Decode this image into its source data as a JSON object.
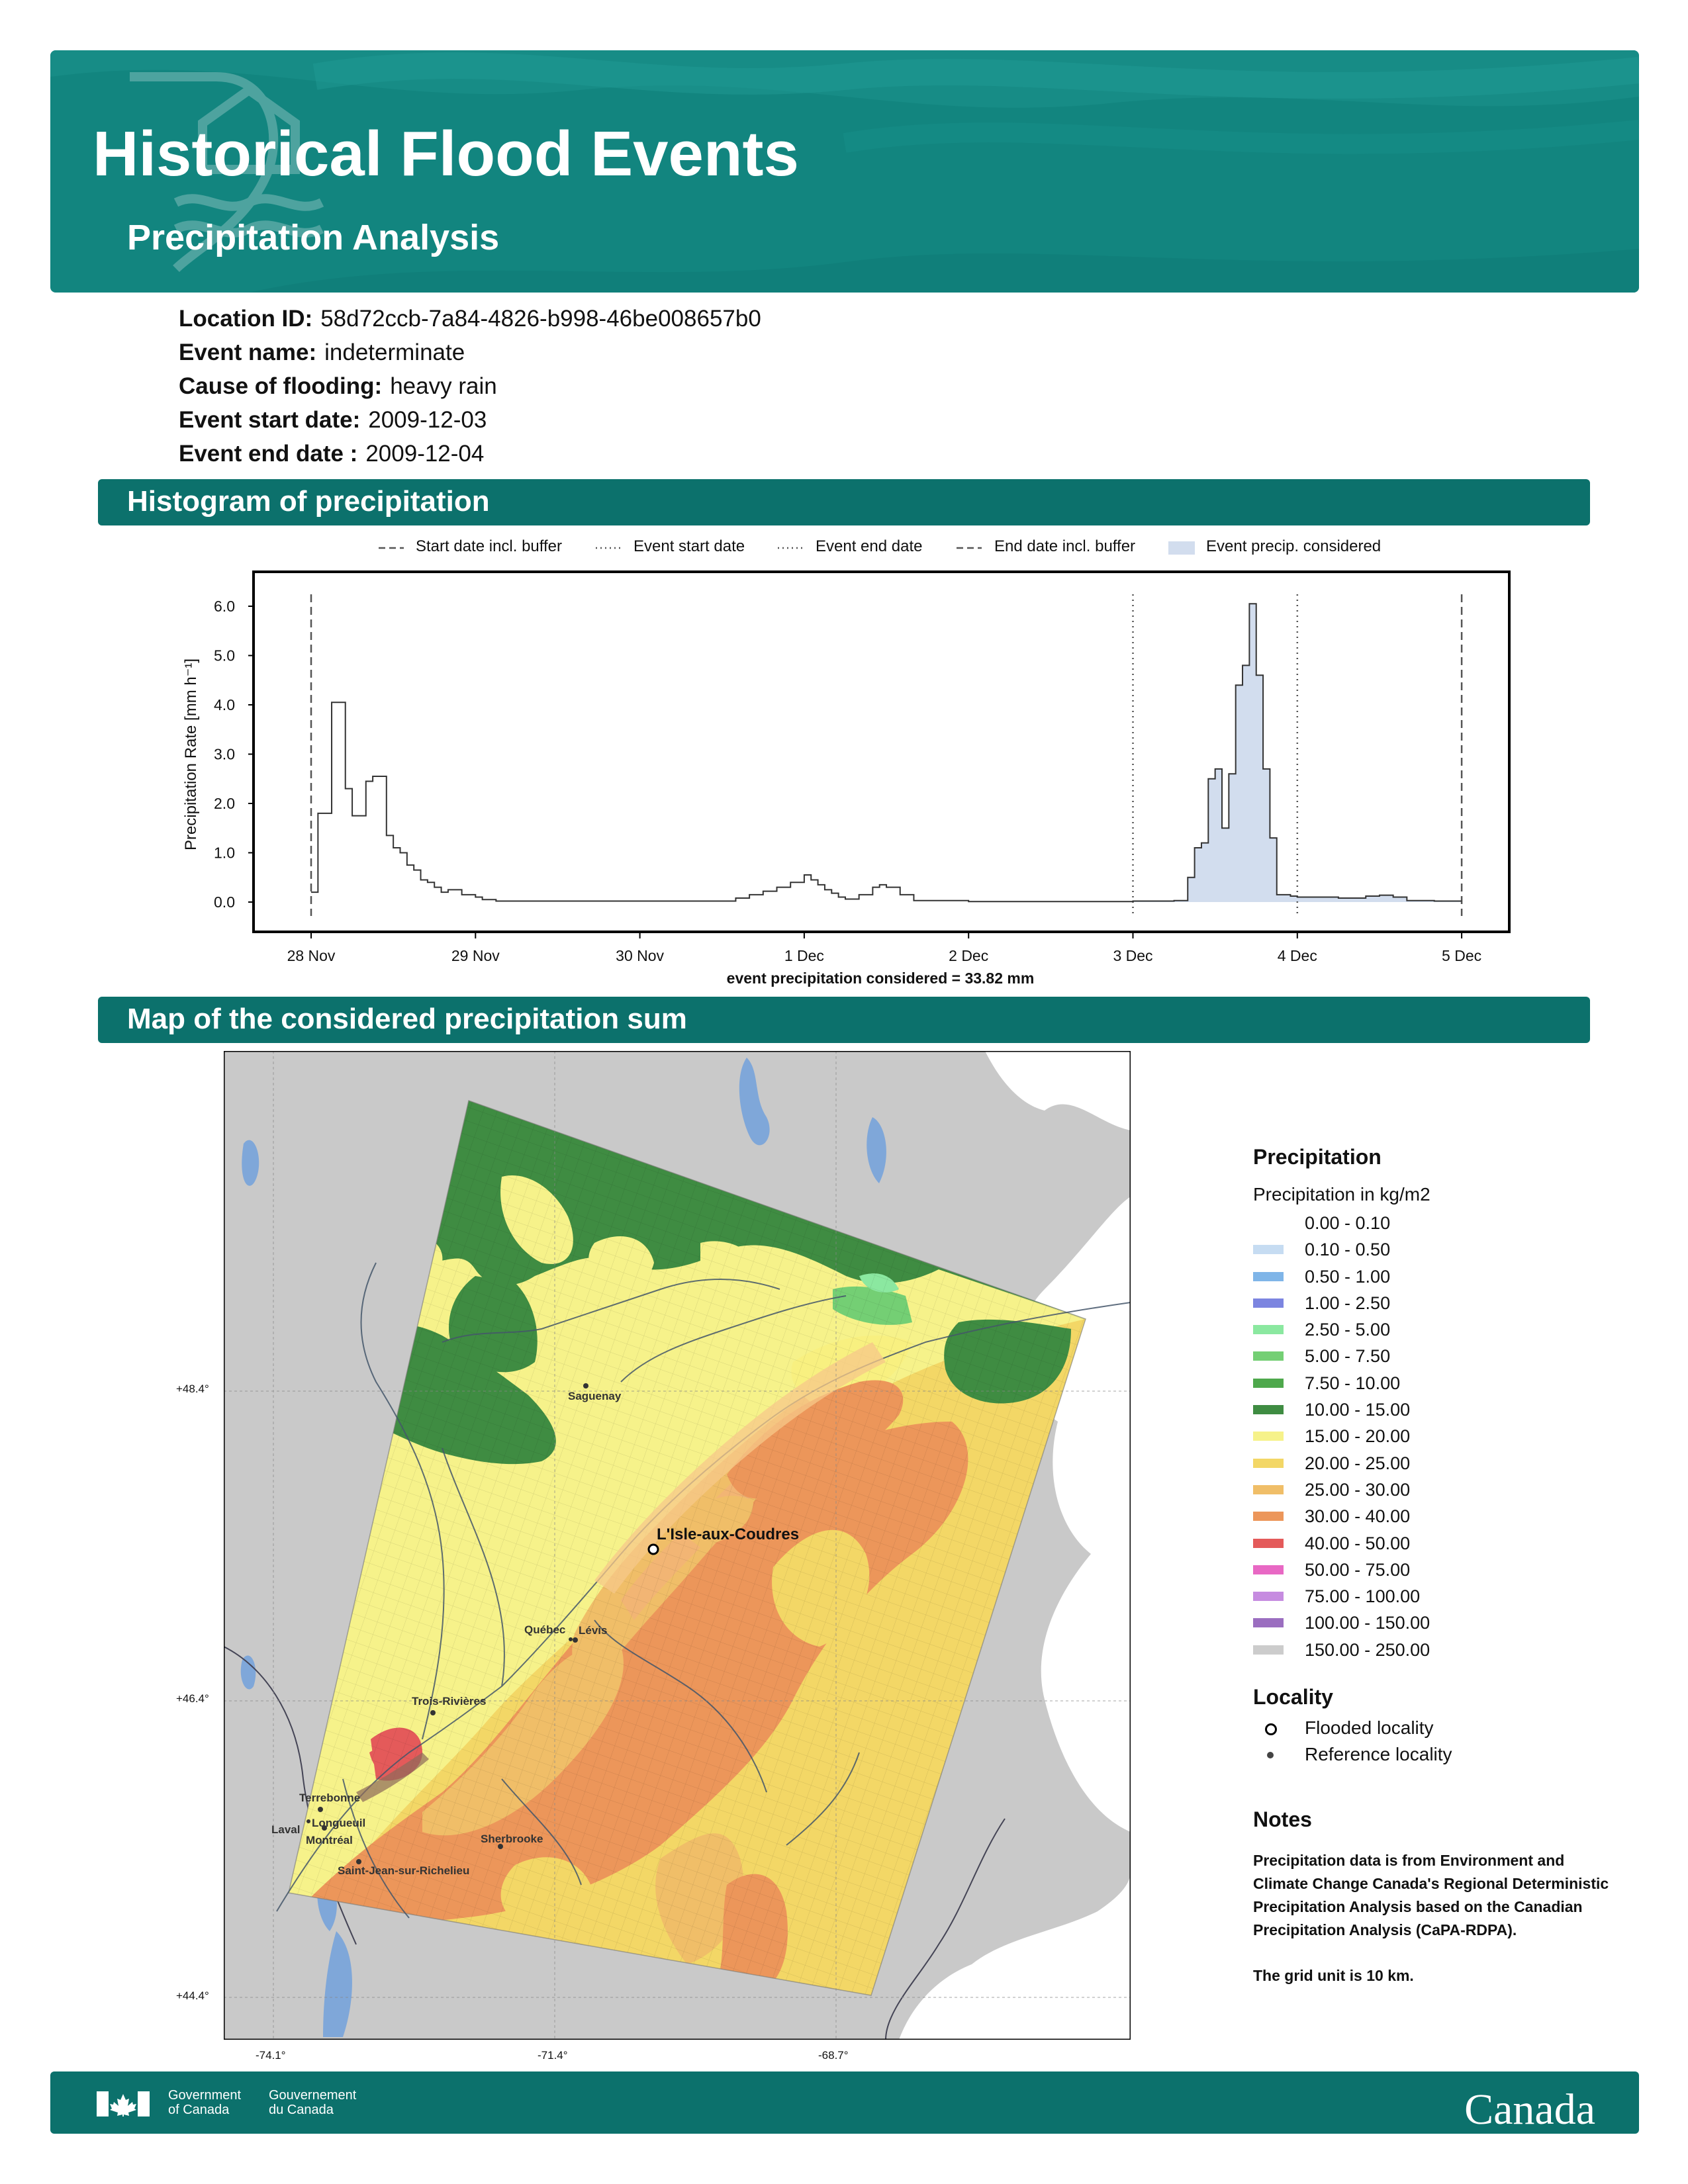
{
  "header": {
    "title": "Historical Flood Events",
    "subtitle": "Precipitation Analysis",
    "bg_color": "#12857f",
    "logo_icon": "flood-house-icon"
  },
  "event": {
    "location_id_label": "Location ID:",
    "location_id": "58d72ccb-7a84-4826-b998-46be008657b0",
    "event_name_label": "Event name:",
    "event_name": "indeterminate",
    "cause_label": "Cause of flooding:",
    "cause": "heavy rain",
    "start_label": "Event start date:",
    "start_date": "2009-12-03",
    "end_label": "Event end date :",
    "end_date": "2009-12-04"
  },
  "sections": {
    "histogram": "Histogram of precipitation",
    "map": "Map of the considered precipitation sum"
  },
  "chart_data": {
    "type": "area",
    "xlabel": "event precipitation considered = 33.82 mm",
    "ylabel": "Precipitation Rate [mm h⁻¹]",
    "ylim": [
      0,
      6.5
    ],
    "xlim_days": [
      27.8,
      35.1
    ],
    "x_ticks": [
      "28 Nov",
      "29 Nov",
      "30 Nov",
      "1 Dec",
      "2 Dec",
      "3 Dec",
      "4 Dec",
      "5 Dec"
    ],
    "y_ticks": [
      "0.0",
      "1.0",
      "2.0",
      "3.0",
      "4.0",
      "5.0",
      "6.0"
    ],
    "legend": [
      "Start date incl. buffer",
      "Event start date",
      "Event end date",
      "End date incl. buffer",
      "Event precip. considered"
    ],
    "legend_position": "top",
    "reference_lines": [
      {
        "name": "Start date incl. buffer",
        "date": "2009-11-28",
        "style": "dashed"
      },
      {
        "name": "Event start date",
        "date": "2009-12-03",
        "style": "dotted"
      },
      {
        "name": "Event end date",
        "date": "2009-12-04",
        "style": "dotted"
      },
      {
        "name": "End date incl. buffer",
        "date": "2009-12-05",
        "style": "dashed"
      }
    ],
    "series": [
      {
        "name": "Precipitation rate",
        "points": [
          [
            "2009-11-28 00:00",
            0.2
          ],
          [
            "2009-11-28 01:00",
            1.8
          ],
          [
            "2009-11-28 02:00",
            1.8
          ],
          [
            "2009-11-28 03:00",
            4.05
          ],
          [
            "2009-11-28 04:00",
            4.05
          ],
          [
            "2009-11-28 05:00",
            2.3
          ],
          [
            "2009-11-28 06:00",
            1.75
          ],
          [
            "2009-11-28 07:00",
            1.75
          ],
          [
            "2009-11-28 08:00",
            2.45
          ],
          [
            "2009-11-28 09:00",
            2.55
          ],
          [
            "2009-11-28 10:00",
            2.55
          ],
          [
            "2009-11-28 11:00",
            1.35
          ],
          [
            "2009-11-28 12:00",
            1.1
          ],
          [
            "2009-11-28 13:00",
            1.0
          ],
          [
            "2009-11-28 14:00",
            0.75
          ],
          [
            "2009-11-28 15:00",
            0.65
          ],
          [
            "2009-11-28 16:00",
            0.45
          ],
          [
            "2009-11-28 17:00",
            0.4
          ],
          [
            "2009-11-28 18:00",
            0.3
          ],
          [
            "2009-11-28 19:00",
            0.2
          ],
          [
            "2009-11-28 20:00",
            0.25
          ],
          [
            "2009-11-28 21:00",
            0.25
          ],
          [
            "2009-11-28 22:00",
            0.15
          ],
          [
            "2009-11-28 23:00",
            0.15
          ],
          [
            "2009-11-29 00:00",
            0.1
          ],
          [
            "2009-11-29 01:00",
            0.05
          ],
          [
            "2009-11-29 03:00",
            0.02
          ],
          [
            "2009-11-30 12:00",
            0.02
          ],
          [
            "2009-11-30 14:00",
            0.08
          ],
          [
            "2009-11-30 16:00",
            0.15
          ],
          [
            "2009-11-30 18:00",
            0.22
          ],
          [
            "2009-11-30 20:00",
            0.3
          ],
          [
            "2009-11-30 22:00",
            0.4
          ],
          [
            "2009-12-01 00:00",
            0.55
          ],
          [
            "2009-12-01 01:00",
            0.45
          ],
          [
            "2009-12-01 02:00",
            0.35
          ],
          [
            "2009-12-01 03:00",
            0.25
          ],
          [
            "2009-12-01 04:00",
            0.18
          ],
          [
            "2009-12-01 05:00",
            0.1
          ],
          [
            "2009-12-01 06:00",
            0.06
          ],
          [
            "2009-12-01 08:00",
            0.15
          ],
          [
            "2009-12-01 10:00",
            0.3
          ],
          [
            "2009-12-01 11:00",
            0.35
          ],
          [
            "2009-12-01 12:00",
            0.3
          ],
          [
            "2009-12-01 14:00",
            0.15
          ],
          [
            "2009-12-01 16:00",
            0.03
          ],
          [
            "2009-12-02 00:00",
            0.01
          ],
          [
            "2009-12-03 00:00",
            0.02
          ],
          [
            "2009-12-03 06:00",
            0.03
          ],
          [
            "2009-12-03 08:00",
            0.5
          ],
          [
            "2009-12-03 09:00",
            1.1
          ],
          [
            "2009-12-03 10:00",
            1.2
          ],
          [
            "2009-12-03 11:00",
            2.5
          ],
          [
            "2009-12-03 12:00",
            2.7
          ],
          [
            "2009-12-03 13:00",
            1.5
          ],
          [
            "2009-12-03 14:00",
            2.6
          ],
          [
            "2009-12-03 15:00",
            4.4
          ],
          [
            "2009-12-03 16:00",
            4.8
          ],
          [
            "2009-12-03 17:00",
            6.05
          ],
          [
            "2009-12-03 18:00",
            4.6
          ],
          [
            "2009-12-03 19:00",
            2.7
          ],
          [
            "2009-12-03 20:00",
            1.3
          ],
          [
            "2009-12-03 21:00",
            0.15
          ],
          [
            "2009-12-03 23:00",
            0.12
          ],
          [
            "2009-12-04 00:00",
            0.1
          ],
          [
            "2009-12-04 06:00",
            0.08
          ],
          [
            "2009-12-04 10:00",
            0.12
          ],
          [
            "2009-12-04 12:00",
            0.14
          ],
          [
            "2009-12-04 14:00",
            0.1
          ],
          [
            "2009-12-04 16:00",
            0.03
          ],
          [
            "2009-12-04 20:00",
            0.02
          ],
          [
            "2009-12-05 00:00",
            0.02
          ]
        ]
      }
    ],
    "shaded_range": [
      "2009-12-03",
      "2009-12-05"
    ],
    "colors": {
      "line": "#333333",
      "fill": "#d2ddee"
    }
  },
  "map": {
    "places": [
      {
        "name": "Saguenay",
        "type": "reference"
      },
      {
        "name": "L'Isle-aux-Coudres",
        "type": "flooded"
      },
      {
        "name": "Québec",
        "type": "reference"
      },
      {
        "name": "Lévis",
        "type": "reference"
      },
      {
        "name": "Trois-Rivières",
        "type": "reference"
      },
      {
        "name": "Terrebonne",
        "type": "reference"
      },
      {
        "name": "Laval",
        "type": "reference"
      },
      {
        "name": "Longueuil",
        "type": "reference"
      },
      {
        "name": "Montréal",
        "type": "reference"
      },
      {
        "name": "Sherbrooke",
        "type": "reference"
      },
      {
        "name": "Saint-Jean-sur-Richelieu",
        "type": "reference"
      }
    ],
    "lat_labels": [
      "+48.4°",
      "+46.4°",
      "+44.4°"
    ],
    "lon_labels": [
      "-74.1°",
      "-71.4°",
      "-68.7°"
    ]
  },
  "legend": {
    "precip_title": "Precipitation",
    "precip_subtitle": "Precipitation in kg/m2",
    "classes": [
      {
        "label": "0.00 - 0.10",
        "color": "#ffffff"
      },
      {
        "label": "0.10 - 0.50",
        "color": "#c6dcf2"
      },
      {
        "label": "0.50 - 1.00",
        "color": "#7fb5e8"
      },
      {
        "label": "1.00 - 2.50",
        "color": "#7c85e0"
      },
      {
        "label": "2.50 - 5.00",
        "color": "#8be8a0"
      },
      {
        "label": "5.00 - 7.50",
        "color": "#74cf74"
      },
      {
        "label": "7.50 - 10.00",
        "color": "#4ea84c"
      },
      {
        "label": "10.00 - 15.00",
        "color": "#3f8c42"
      },
      {
        "label": "15.00 - 20.00",
        "color": "#f6f28a"
      },
      {
        "label": "20.00 - 25.00",
        "color": "#f3d766"
      },
      {
        "label": "25.00 - 30.00",
        "color": "#f0be68"
      },
      {
        "label": "30.00 - 40.00",
        "color": "#ec965a"
      },
      {
        "label": "40.00 - 50.00",
        "color": "#e45a5a"
      },
      {
        "label": "50.00 - 75.00",
        "color": "#e868c4"
      },
      {
        "label": "75.00 - 100.00",
        "color": "#c68ce0"
      },
      {
        "label": "100.00 - 150.00",
        "color": "#9b6ec0"
      },
      {
        "label": "150.00 - 250.00",
        "color": "#cccccc"
      }
    ],
    "locality_title": "Locality",
    "flooded_label": "Flooded locality",
    "reference_label": "Reference locality",
    "notes_title": "Notes",
    "notes_text": "Precipitation data is from Environment and Climate Change Canada's Regional Deterministic Precipitation Analysis based on the Canadian Precipitation Analysis (CaPA-RDPA).",
    "notes_grid": "The grid unit is 10 km."
  },
  "footer": {
    "gov_en": "Government of Canada",
    "gov_fr": "Gouvernement du Canada",
    "wordmark": "Canada",
    "flag_icon": "canada-flag-icon"
  }
}
